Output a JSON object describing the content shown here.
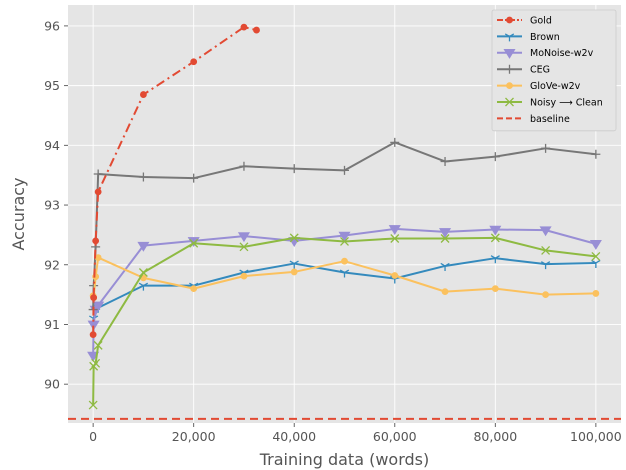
{
  "chart_data": {
    "type": "line",
    "title": "",
    "xlabel": "Training data (words)",
    "ylabel": "Accuracy",
    "xlim": [
      -5000,
      105000
    ],
    "ylim": [
      89.35,
      96.35
    ],
    "xticks": [
      0,
      20000,
      40000,
      60000,
      80000,
      100000
    ],
    "xtick_labels": [
      "0",
      "20,000",
      "40,000",
      "60,000",
      "80,000",
      "100,000"
    ],
    "yticks": [
      90,
      91,
      92,
      93,
      94,
      95,
      96
    ],
    "ytick_labels": [
      "90",
      "91",
      "92",
      "93",
      "94",
      "95",
      "96"
    ],
    "grid": true,
    "legend_position": "top-right",
    "series": [
      {
        "name": "Gold",
        "color": "#e24a33",
        "marker": "circle",
        "linestyle": "dashdot",
        "x": [
          0,
          100,
          500,
          1000,
          10000,
          20000,
          30000,
          32500
        ],
        "y": [
          90.83,
          91.45,
          92.4,
          93.22,
          94.85,
          95.4,
          95.98,
          95.93
        ]
      },
      {
        "name": "Brown",
        "color": "#348abd",
        "marker": "tri_down",
        "linestyle": "solid",
        "x": [
          0,
          100,
          500,
          1000,
          10000,
          20000,
          30000,
          40000,
          50000,
          60000,
          70000,
          80000,
          90000,
          100000
        ],
        "y": [
          91.0,
          91.1,
          91.22,
          91.28,
          91.65,
          91.65,
          91.87,
          92.02,
          91.87,
          91.77,
          91.98,
          92.11,
          92.01,
          92.03
        ]
      },
      {
        "name": "MoNoise-w2v",
        "color": "#988ed5",
        "marker": "triangle_down",
        "linestyle": "solid",
        "x": [
          0,
          100,
          500,
          1000,
          10000,
          20000,
          30000,
          40000,
          50000,
          60000,
          70000,
          80000,
          90000,
          100000
        ],
        "y": [
          90.48,
          91.0,
          91.25,
          91.32,
          92.32,
          92.4,
          92.48,
          92.4,
          92.49,
          92.6,
          92.55,
          92.59,
          92.58,
          92.35
        ]
      },
      {
        "name": "CEG",
        "color": "#777777",
        "marker": "plus",
        "linestyle": "solid",
        "x": [
          0,
          100,
          500,
          1000,
          10000,
          20000,
          30000,
          40000,
          50000,
          60000,
          70000,
          80000,
          90000,
          100000
        ],
        "y": [
          91.25,
          91.65,
          92.3,
          93.52,
          93.47,
          93.45,
          93.65,
          93.61,
          93.58,
          94.05,
          93.73,
          93.81,
          93.95,
          93.85
        ]
      },
      {
        "name": "GloVe-w2v",
        "color": "#fbc15e",
        "marker": "circle",
        "linestyle": "solid",
        "x": [
          0,
          100,
          500,
          1000,
          10000,
          20000,
          30000,
          40000,
          50000,
          60000,
          70000,
          80000,
          90000,
          100000
        ],
        "y": [
          91.48,
          91.45,
          91.8,
          92.12,
          91.78,
          91.6,
          91.81,
          91.88,
          92.06,
          91.82,
          91.55,
          91.6,
          91.5,
          91.52
        ]
      },
      {
        "name": "Noisy ⟶ Clean",
        "color": "#8eba42",
        "marker": "x",
        "linestyle": "solid",
        "x": [
          0,
          100,
          500,
          1000,
          10000,
          20000,
          30000,
          40000,
          50000,
          60000,
          70000,
          80000,
          90000,
          100000
        ],
        "y": [
          89.65,
          90.3,
          90.35,
          90.65,
          91.87,
          92.36,
          92.3,
          92.45,
          92.39,
          92.44,
          92.44,
          92.45,
          92.24,
          92.14
        ]
      },
      {
        "name": "baseline",
        "color": "#e24a33",
        "linestyle": "dashed",
        "marker": "none",
        "y_constant": 89.42
      }
    ]
  }
}
